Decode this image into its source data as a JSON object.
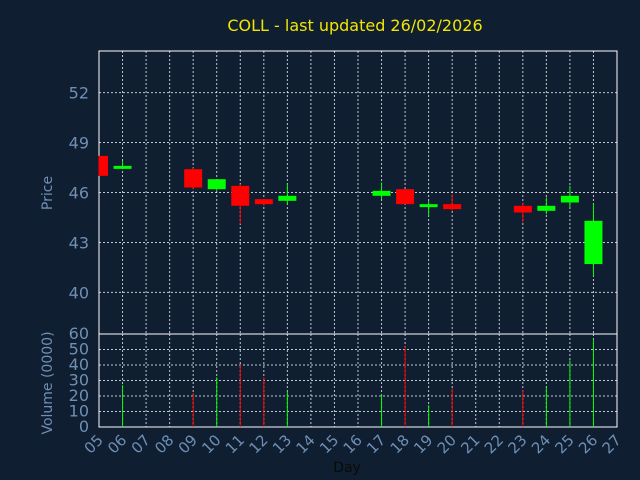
{
  "chart_data": [
    {
      "type": "candlestick",
      "title": "COLL - last updated 26/02/2026",
      "xlabel": "Day",
      "ylabel": "Price",
      "ylim": [
        37.5,
        54.5
      ],
      "y_ticks": [
        40,
        43,
        46,
        49,
        52
      ],
      "x_tick_labels": [
        "05",
        "06",
        "07",
        "08",
        "09",
        "10",
        "11",
        "12",
        "13",
        "14",
        "15",
        "16",
        "17",
        "18",
        "19",
        "20",
        "21",
        "22",
        "23",
        "24",
        "25",
        "26",
        "27"
      ],
      "grid": true,
      "colors": {
        "up": "#00ff00",
        "down": "#ff0000",
        "background": "#0f1e30",
        "text": "#6f8fb5",
        "title": "#f2e600",
        "grid": "#ffffff",
        "axis": "#ffffff"
      },
      "candles": [
        {
          "day": "05",
          "open": 48.2,
          "high": 48.2,
          "low": 47.0,
          "close": 47.0
        },
        {
          "day": "06",
          "open": 47.5,
          "high": 47.9,
          "low": 47.4,
          "close": 47.6
        },
        {
          "day": "09",
          "open": 47.4,
          "high": 47.5,
          "low": 46.2,
          "close": 46.3
        },
        {
          "day": "10",
          "open": 46.2,
          "high": 46.8,
          "low": 46.1,
          "close": 46.8
        },
        {
          "day": "11",
          "open": 46.4,
          "high": 46.5,
          "low": 44.1,
          "close": 45.2
        },
        {
          "day": "12",
          "open": 45.6,
          "high": 45.6,
          "low": 45.2,
          "close": 45.3
        },
        {
          "day": "13",
          "open": 45.5,
          "high": 46.5,
          "low": 45.3,
          "close": 45.8
        },
        {
          "day": "17",
          "open": 45.8,
          "high": 46.6,
          "low": 45.6,
          "close": 46.1
        },
        {
          "day": "18",
          "open": 46.2,
          "high": 46.2,
          "low": 45.3,
          "close": 45.3
        },
        {
          "day": "19",
          "open": 45.2,
          "high": 45.5,
          "low": 44.6,
          "close": 45.3
        },
        {
          "day": "20",
          "open": 45.3,
          "high": 45.9,
          "low": 44.9,
          "close": 45.0
        },
        {
          "day": "23",
          "open": 45.2,
          "high": 45.4,
          "low": 44.2,
          "close": 44.8
        },
        {
          "day": "24",
          "open": 44.9,
          "high": 45.7,
          "low": 44.7,
          "close": 45.2
        },
        {
          "day": "25",
          "open": 45.4,
          "high": 46.4,
          "low": 45.1,
          "close": 45.8
        },
        {
          "day": "26",
          "open": 41.7,
          "high": 45.3,
          "low": 41.0,
          "close": 44.3
        }
      ]
    },
    {
      "type": "bar",
      "xlabel": "Day",
      "ylabel": "Volume (0000)",
      "ylim": [
        0,
        60
      ],
      "y_ticks": [
        0,
        10,
        20,
        30,
        40,
        50,
        60
      ],
      "categories": [
        "06",
        "09",
        "10",
        "11",
        "12",
        "13",
        "17",
        "18",
        "19",
        "20",
        "23",
        "24",
        "25",
        "26"
      ],
      "values": [
        27,
        22,
        32,
        40,
        32,
        23,
        21,
        52,
        14,
        25,
        24,
        26,
        43,
        57
      ]
    }
  ]
}
